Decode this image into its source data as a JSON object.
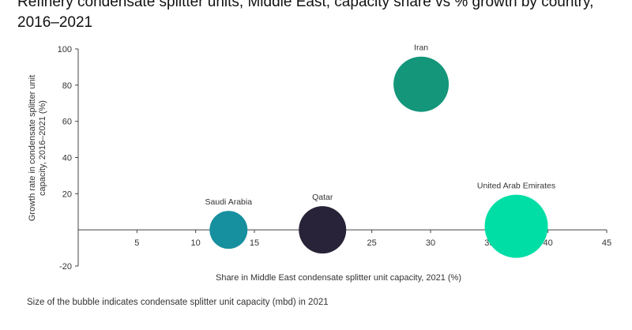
{
  "title": "Refinery condensate splitter units, Middle East, capacity share vs % growth by country, 2016–2021",
  "note": "Size of the bubble indicates condensate splitter unit capacity (mbd) in 2021",
  "chart_data": {
    "type": "scatter",
    "title": "Refinery condensate splitter units, Middle East, capacity share vs % growth by country, 2016–2021",
    "xlabel": "Share in Middle East condensate splitter unit capacity, 2021 (%)",
    "ylabel": "Growth rate in condensate splitter unit capacity, 2016–2021 (%)",
    "xlim": [
      0,
      45
    ],
    "ylim": [
      -20,
      100
    ],
    "xticks": [
      5,
      10,
      15,
      20,
      25,
      30,
      35,
      40,
      45
    ],
    "yticks": [
      100,
      80,
      60,
      40,
      20,
      -20
    ],
    "grid": false,
    "points": [
      {
        "label": "Iran",
        "x": 29.2,
        "y": 80.5,
        "size": 35,
        "color": "#14967a"
      },
      {
        "label": "United Arab Emirates",
        "x": 37.3,
        "y": 2,
        "size": 40,
        "color": "#00dea6"
      },
      {
        "label": "Qatar",
        "x": 20.8,
        "y": 0,
        "size": 30,
        "color": "#282338"
      },
      {
        "label": "Saudi Arabia",
        "x": 12.8,
        "y": 0,
        "size": 24,
        "color": "#168f9f"
      }
    ]
  }
}
